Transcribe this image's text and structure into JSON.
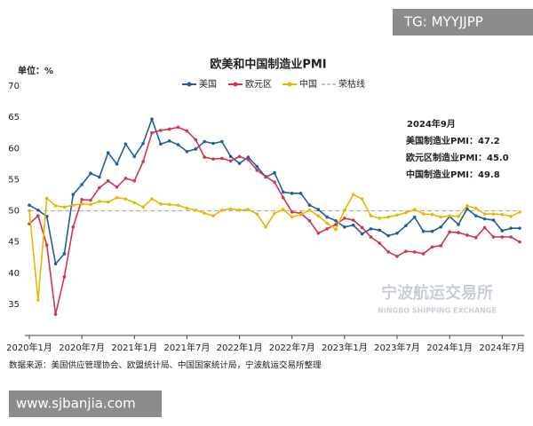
{
  "chart_data": {
    "type": "line",
    "title": "欧美和中国制造业PMI",
    "y_unit_label": "单位：%",
    "source": "数据来源：美国供应管理协会、欧盟统计局、中国国家统计局，宁波航运交易所整理",
    "categories": [
      "2020年1月",
      null,
      null,
      null,
      null,
      null,
      "2020年7月",
      null,
      null,
      null,
      null,
      null,
      "2021年1月",
      null,
      null,
      null,
      null,
      null,
      "2021年7月",
      null,
      null,
      null,
      null,
      null,
      "2022年1月",
      null,
      null,
      null,
      null,
      null,
      "2022年7月",
      null,
      null,
      null,
      null,
      null,
      "2023年1月",
      null,
      null,
      null,
      null,
      null,
      "2023年7月",
      null,
      null,
      null,
      null,
      null,
      "2024年1月",
      null,
      null,
      null,
      null,
      null,
      "2024年7月",
      null,
      null
    ],
    "series": [
      {
        "name": "美国",
        "color": "#1f5fa0",
        "values": [
          50.9,
          50.1,
          49.1,
          41.5,
          43.1,
          52.6,
          54.2,
          56.0,
          55.4,
          59.3,
          57.5,
          60.7,
          58.7,
          60.8,
          64.7,
          60.7,
          61.2,
          60.6,
          59.5,
          59.9,
          61.1,
          60.8,
          61.1,
          58.7,
          57.6,
          58.6,
          57.1,
          55.4,
          56.1,
          53.0,
          52.8,
          52.8,
          50.9,
          50.2,
          49.0,
          48.4,
          47.4,
          47.7,
          46.3,
          47.1,
          46.9,
          46.0,
          46.4,
          47.6,
          49.0,
          46.7,
          46.7,
          47.4,
          49.1,
          47.8,
          50.3,
          49.2,
          48.7,
          48.5,
          46.8,
          47.2,
          47.2
        ]
      },
      {
        "name": "欧元区",
        "color": "#d2344f",
        "values": [
          47.9,
          49.2,
          44.5,
          33.4,
          39.4,
          47.4,
          51.8,
          51.7,
          53.7,
          54.8,
          53.8,
          55.2,
          54.8,
          57.9,
          62.5,
          62.9,
          63.1,
          63.4,
          62.8,
          61.4,
          58.6,
          58.3,
          58.4,
          58.0,
          58.7,
          58.2,
          56.5,
          55.5,
          54.6,
          52.1,
          49.8,
          49.6,
          48.4,
          46.4,
          47.1,
          47.8,
          48.8,
          48.5,
          47.3,
          45.8,
          44.8,
          43.4,
          42.7,
          43.5,
          43.4,
          43.1,
          44.2,
          44.4,
          46.6,
          46.5,
          46.1,
          45.7,
          47.3,
          45.8,
          45.8,
          45.8,
          45.0
        ]
      },
      {
        "name": "中国",
        "color": "#e6b800",
        "values": [
          50.0,
          35.7,
          52.0,
          50.8,
          50.6,
          50.9,
          51.1,
          51.0,
          51.5,
          51.4,
          52.1,
          51.9,
          51.3,
          50.6,
          51.9,
          51.1,
          51.0,
          50.9,
          50.4,
          50.1,
          49.6,
          49.2,
          50.1,
          50.3,
          50.1,
          50.2,
          49.5,
          47.4,
          49.6,
          50.2,
          49.0,
          49.4,
          50.1,
          49.2,
          48.0,
          47.0,
          50.1,
          52.6,
          51.9,
          49.2,
          48.8,
          49.0,
          49.3,
          49.7,
          50.2,
          49.5,
          49.4,
          49.0,
          49.2,
          49.1,
          50.8,
          50.4,
          49.5,
          49.5,
          49.4,
          49.1,
          49.8
        ]
      }
    ],
    "reference_line": {
      "name": "荣枯线",
      "value": 50,
      "color": "#b0b0b0"
    },
    "ylim": [
      30,
      70
    ],
    "yticks": [
      35,
      40,
      45,
      50,
      55,
      60,
      65,
      70
    ],
    "annotations": [
      "2024年9月",
      "美国制造业PMI：47.2",
      "欧元区制造业PMI：45.0",
      "中国制造业PMI：49.8"
    ]
  },
  "watermarks": {
    "top": "TG: MYYJJPP",
    "bottom": "www.sjbanjia.com",
    "logo": "宁波航运交易所",
    "logo_sub": "NINGBO SHIPPING EXCHANGE"
  }
}
